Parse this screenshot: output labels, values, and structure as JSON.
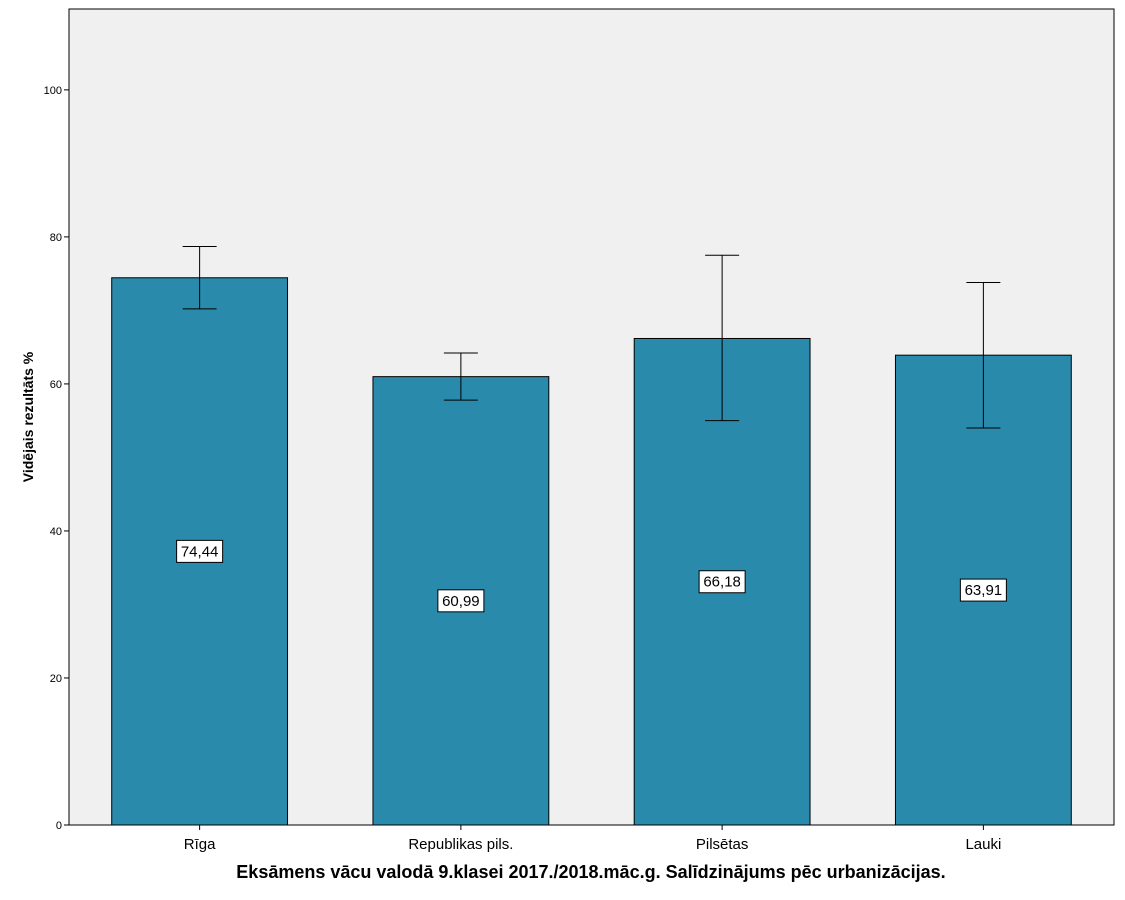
{
  "chart_data": {
    "type": "bar",
    "categories": [
      "Rīga",
      "Republikas pils.",
      "Pilsētas",
      "Lauki"
    ],
    "values": [
      74.44,
      60.99,
      66.18,
      63.91
    ],
    "value_labels": [
      "74,44",
      "60,99",
      "66,18",
      "63,91"
    ],
    "error_low": [
      70.2,
      57.8,
      55.0,
      54.0
    ],
    "error_high": [
      78.7,
      64.2,
      77.5,
      73.8
    ],
    "xlabel": "Eksāmens vācu valodā 9.klasei 2017./2018.māc.g. Salīdzinājums pēc urbanizācijas.",
    "ylabel": "Vidējais rezultāts %",
    "ylim": [
      0,
      111
    ],
    "yticks": [
      0,
      20,
      40,
      60,
      80,
      100
    ],
    "grid": false,
    "colors": {
      "bar": "#2a8aab",
      "plot_background": "#f0f0f0",
      "axis": "#000000"
    }
  }
}
